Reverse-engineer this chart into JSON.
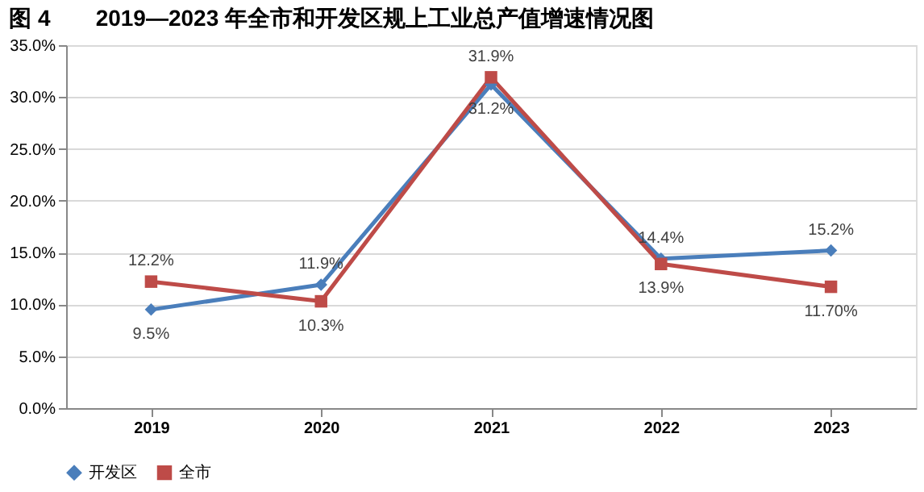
{
  "chart_data": {
    "type": "line",
    "title": "图 4　　2019—2023 年全市和开发区规上工业总产值增速情况图",
    "categories": [
      "2019",
      "2020",
      "2021",
      "2022",
      "2023"
    ],
    "series": [
      {
        "name": "开发区",
        "color": "#4a7ebb",
        "marker": "diamond",
        "values": [
          9.5,
          11.9,
          31.2,
          14.4,
          15.2
        ],
        "value_labels": [
          "9.5%",
          "11.9%",
          "31.2%",
          "14.4%",
          "15.2%"
        ]
      },
      {
        "name": "全市",
        "color": "#be4b48",
        "marker": "square",
        "values": [
          12.2,
          10.3,
          31.9,
          13.9,
          11.7
        ],
        "value_labels": [
          "12.2%",
          "10.3%",
          "31.9%",
          "13.9%",
          "11.70%"
        ]
      }
    ],
    "ylim": [
      0,
      35
    ],
    "yticks": [
      {
        "value": 0,
        "label": "0.0%"
      },
      {
        "value": 5,
        "label": "5.0%"
      },
      {
        "value": 10,
        "label": "10.0%"
      },
      {
        "value": 15,
        "label": "15.0%"
      },
      {
        "value": 20,
        "label": "20.0%"
      },
      {
        "value": 25,
        "label": "25.0%"
      },
      {
        "value": 30,
        "label": "30.0%"
      },
      {
        "value": 35,
        "label": "35.0%"
      }
    ],
    "grid": "y",
    "legend": "bottom",
    "line_style": "solid"
  }
}
